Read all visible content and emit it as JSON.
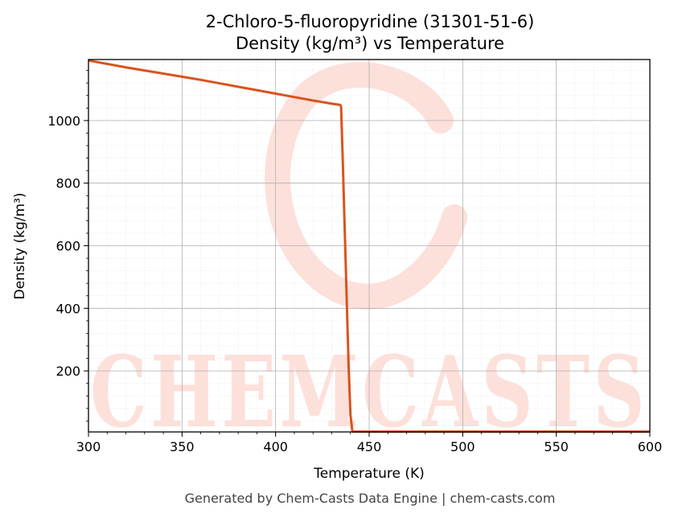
{
  "chart_data": {
    "type": "line",
    "title": "2-Chloro-5-fluoropyridine (31301-51-6)",
    "subtitle": "Density (kg/m³) vs Temperature",
    "xlabel": "Temperature (K)",
    "ylabel": "Density (kg/m³)",
    "xlim": [
      300,
      600
    ],
    "ylim": [
      5,
      1195
    ],
    "x_ticks": [
      300,
      350,
      400,
      450,
      500,
      550,
      600
    ],
    "y_ticks": [
      200,
      400,
      600,
      800,
      1000
    ],
    "grid": true,
    "line_color": "#d9531e",
    "series": [
      {
        "x": [
          300,
          310,
          320,
          330,
          340,
          350,
          360,
          370,
          380,
          390,
          400,
          410,
          420,
          430,
          434.5,
          435,
          436,
          437,
          438,
          439,
          440,
          441,
          441.5,
          450,
          500,
          550,
          600
        ],
        "y": [
          1192,
          1181,
          1170,
          1160,
          1150,
          1140,
          1130,
          1119,
          1108,
          1097,
          1086,
          1075,
          1064,
          1054,
          1050,
          1045,
          850,
          640,
          430,
          220,
          60,
          8,
          6,
          6,
          6,
          6,
          6
        ]
      }
    ]
  },
  "watermark": "CHEMCASTS",
  "footer": "Generated by Chem-Casts Data Engine | chem-casts.com"
}
